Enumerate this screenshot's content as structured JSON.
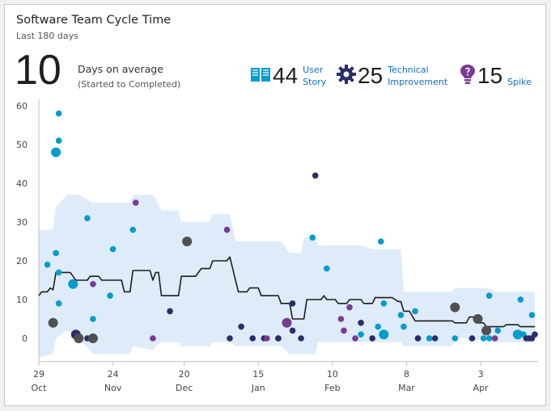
{
  "header": {
    "title": "Software Team Cycle Time",
    "subtitle": "Last 180 days",
    "average_value": "10",
    "average_label": "Days on average",
    "average_sub": "(Started to Completed)"
  },
  "work_items": [
    {
      "count": "44",
      "label_line1": "User",
      "label_line2": "Story",
      "icon": "book-icon",
      "color": "#009ccc"
    },
    {
      "count": "25",
      "label_line1": "Technical",
      "label_line2": "Improvement",
      "icon": "gear-icon",
      "color": "#292e6b"
    },
    {
      "count": "15",
      "label_line1": "Spike",
      "label_line2": "",
      "icon": "lightbulb-icon",
      "color": "#773b93"
    }
  ],
  "colors": {
    "user_story": "#009ccc",
    "technical": "#292e6b",
    "spike": "#773b93",
    "multiple": "#505050",
    "band": "#deebf8",
    "line": "#1e1e1e"
  },
  "chart_data": {
    "type": "scatter",
    "title": "Software Team Cycle Time",
    "ylabel": "",
    "xlabel": "",
    "ylim": [
      -6,
      60
    ],
    "xlim": [
      0,
      174
    ],
    "y_ticks": [
      0,
      10,
      20,
      30,
      40,
      50,
      60
    ],
    "x_ticks": [
      {
        "x": 0,
        "day": "29",
        "month": "Oct"
      },
      {
        "x": 26,
        "day": "24",
        "month": "Nov"
      },
      {
        "x": 51,
        "day": "20",
        "month": "Dec"
      },
      {
        "x": 77,
        "day": "15",
        "month": "Jan"
      },
      {
        "x": 103,
        "day": "10",
        "month": "Feb"
      },
      {
        "x": 129,
        "day": "8",
        "month": "Mar"
      },
      {
        "x": 155,
        "day": "3",
        "month": "Apr"
      }
    ],
    "points": [
      {
        "x": 3,
        "y": 19,
        "type": "user_story"
      },
      {
        "x": 5,
        "y": 4,
        "type": "multiple",
        "size": "large"
      },
      {
        "x": 6,
        "y": 48,
        "type": "user_story",
        "size": "large"
      },
      {
        "x": 6,
        "y": 22,
        "type": "user_story"
      },
      {
        "x": 7,
        "y": 58,
        "type": "user_story"
      },
      {
        "x": 7,
        "y": 51,
        "type": "user_story"
      },
      {
        "x": 7,
        "y": 17,
        "type": "user_story"
      },
      {
        "x": 7,
        "y": 9,
        "type": "user_story"
      },
      {
        "x": 12,
        "y": 14,
        "type": "user_story",
        "size": "large"
      },
      {
        "x": 13,
        "y": 1,
        "type": "technical",
        "size": "large"
      },
      {
        "x": 14,
        "y": 0,
        "type": "multiple",
        "size": "large"
      },
      {
        "x": 17,
        "y": 0,
        "type": "technical"
      },
      {
        "x": 17,
        "y": 31,
        "type": "user_story"
      },
      {
        "x": 19,
        "y": 14,
        "type": "spike"
      },
      {
        "x": 19,
        "y": 5,
        "type": "user_story"
      },
      {
        "x": 19,
        "y": 0,
        "type": "multiple",
        "size": "large"
      },
      {
        "x": 25,
        "y": 11,
        "type": "user_story"
      },
      {
        "x": 26,
        "y": 23,
        "type": "user_story"
      },
      {
        "x": 33,
        "y": 28,
        "type": "user_story"
      },
      {
        "x": 34,
        "y": 35,
        "type": "spike"
      },
      {
        "x": 40,
        "y": 0,
        "type": "spike"
      },
      {
        "x": 46,
        "y": 7,
        "type": "technical"
      },
      {
        "x": 52,
        "y": 25,
        "type": "multiple",
        "size": "large"
      },
      {
        "x": 66,
        "y": 28,
        "type": "spike"
      },
      {
        "x": 67,
        "y": 0,
        "type": "technical"
      },
      {
        "x": 71,
        "y": 3,
        "type": "technical"
      },
      {
        "x": 75,
        "y": 0,
        "type": "technical"
      },
      {
        "x": 79,
        "y": 0,
        "type": "technical"
      },
      {
        "x": 80,
        "y": 0,
        "type": "spike"
      },
      {
        "x": 84,
        "y": 0,
        "type": "technical"
      },
      {
        "x": 84,
        "y": 0,
        "type": "technical"
      },
      {
        "x": 87,
        "y": 4,
        "type": "spike",
        "size": "large"
      },
      {
        "x": 89,
        "y": 9,
        "type": "technical"
      },
      {
        "x": 89,
        "y": 2,
        "type": "technical"
      },
      {
        "x": 92,
        "y": 0,
        "type": "technical"
      },
      {
        "x": 96,
        "y": 26,
        "type": "user_story"
      },
      {
        "x": 97,
        "y": 42,
        "type": "technical"
      },
      {
        "x": 101,
        "y": 18,
        "type": "user_story"
      },
      {
        "x": 106,
        "y": 5,
        "type": "spike"
      },
      {
        "x": 107,
        "y": 2,
        "type": "spike"
      },
      {
        "x": 109,
        "y": 8,
        "type": "spike"
      },
      {
        "x": 111,
        "y": 0,
        "type": "spike"
      },
      {
        "x": 113,
        "y": 4,
        "type": "technical"
      },
      {
        "x": 113,
        "y": 1,
        "type": "user_story"
      },
      {
        "x": 117,
        "y": 0,
        "type": "technical"
      },
      {
        "x": 119,
        "y": 3,
        "type": "user_story"
      },
      {
        "x": 120,
        "y": 25,
        "type": "user_story"
      },
      {
        "x": 121,
        "y": 9,
        "type": "user_story"
      },
      {
        "x": 121,
        "y": 1,
        "type": "user_story",
        "size": "large"
      },
      {
        "x": 127,
        "y": 6,
        "type": "user_story"
      },
      {
        "x": 128,
        "y": 3,
        "type": "user_story"
      },
      {
        "x": 132,
        "y": 7,
        "type": "user_story"
      },
      {
        "x": 133,
        "y": 0,
        "type": "spike"
      },
      {
        "x": 133,
        "y": 0,
        "type": "technical"
      },
      {
        "x": 137,
        "y": 0,
        "type": "user_story"
      },
      {
        "x": 139,
        "y": 0,
        "type": "technical"
      },
      {
        "x": 146,
        "y": 8,
        "type": "multiple",
        "size": "large"
      },
      {
        "x": 146,
        "y": 0,
        "type": "user_story"
      },
      {
        "x": 152,
        "y": 0,
        "type": "technical"
      },
      {
        "x": 154,
        "y": 5,
        "type": "multiple",
        "size": "large"
      },
      {
        "x": 156,
        "y": 0,
        "type": "user_story"
      },
      {
        "x": 157,
        "y": 2,
        "type": "multiple",
        "size": "large"
      },
      {
        "x": 158,
        "y": 11,
        "type": "user_story"
      },
      {
        "x": 158,
        "y": 0,
        "type": "user_story"
      },
      {
        "x": 160,
        "y": 0,
        "type": "spike"
      },
      {
        "x": 161,
        "y": 2,
        "type": "user_story"
      },
      {
        "x": 168,
        "y": 1,
        "type": "user_story",
        "size": "large"
      },
      {
        "x": 169,
        "y": 10,
        "type": "user_story"
      },
      {
        "x": 170,
        "y": 1,
        "type": "user_story"
      },
      {
        "x": 171,
        "y": 0,
        "type": "technical"
      },
      {
        "x": 172,
        "y": 0,
        "type": "technical"
      },
      {
        "x": 173,
        "y": 6,
        "type": "user_story"
      },
      {
        "x": 173,
        "y": 0,
        "type": "technical"
      },
      {
        "x": 174,
        "y": 1,
        "type": "technical"
      }
    ],
    "moving_average": [
      [
        0,
        11
      ],
      [
        1,
        12
      ],
      [
        3,
        12
      ],
      [
        4,
        13
      ],
      [
        5,
        12.5
      ],
      [
        6,
        17
      ],
      [
        11,
        17
      ],
      [
        12,
        16
      ],
      [
        13,
        15
      ],
      [
        17,
        15
      ],
      [
        18,
        16
      ],
      [
        21,
        16
      ],
      [
        22,
        15
      ],
      [
        29,
        15
      ],
      [
        30,
        12
      ],
      [
        32,
        12
      ],
      [
        33,
        17.5
      ],
      [
        39,
        17.5
      ],
      [
        40,
        15
      ],
      [
        41,
        17
      ],
      [
        42,
        17
      ],
      [
        43,
        11
      ],
      [
        49,
        11
      ],
      [
        50,
        16
      ],
      [
        55,
        16
      ],
      [
        57,
        18
      ],
      [
        60,
        18
      ],
      [
        61,
        20
      ],
      [
        66,
        20
      ],
      [
        67,
        21
      ],
      [
        69,
        15
      ],
      [
        70,
        12
      ],
      [
        73,
        12
      ],
      [
        74,
        13
      ],
      [
        77,
        13
      ],
      [
        78,
        11
      ],
      [
        84,
        11
      ],
      [
        85,
        9
      ],
      [
        88,
        9
      ],
      [
        89,
        5
      ],
      [
        93,
        5
      ],
      [
        94,
        10
      ],
      [
        99,
        10
      ],
      [
        100,
        11
      ],
      [
        101,
        10
      ],
      [
        104,
        10
      ],
      [
        105,
        9
      ],
      [
        108,
        9
      ],
      [
        109,
        10
      ],
      [
        113,
        10
      ],
      [
        114,
        9
      ],
      [
        117,
        9
      ],
      [
        118,
        10.5
      ],
      [
        124,
        10.5
      ],
      [
        125,
        10
      ],
      [
        126,
        9.5
      ],
      [
        127,
        9.5
      ],
      [
        128,
        7
      ],
      [
        130,
        7
      ],
      [
        132,
        4.5
      ],
      [
        145,
        4.5
      ],
      [
        146,
        4
      ],
      [
        150,
        4
      ],
      [
        151,
        5.5
      ],
      [
        153,
        5.5
      ],
      [
        154,
        4
      ],
      [
        156,
        4
      ],
      [
        157,
        3
      ],
      [
        163,
        3
      ],
      [
        164,
        3.5
      ],
      [
        168,
        3.5
      ],
      [
        169,
        3
      ],
      [
        174,
        3
      ]
    ],
    "band": [
      [
        0,
        28,
        -5
      ],
      [
        5,
        28,
        -4
      ],
      [
        6,
        34,
        0
      ],
      [
        10,
        37,
        2
      ],
      [
        14,
        37,
        0
      ],
      [
        19,
        35,
        -4
      ],
      [
        32,
        35,
        -4
      ],
      [
        33,
        37,
        -2
      ],
      [
        40,
        37,
        -3
      ],
      [
        41,
        36,
        -2
      ],
      [
        43,
        33,
        -1
      ],
      [
        49,
        33,
        -1
      ],
      [
        50,
        30,
        -2
      ],
      [
        60,
        30,
        -2
      ],
      [
        61,
        32,
        -1
      ],
      [
        67,
        32,
        -1
      ],
      [
        69,
        25,
        -2
      ],
      [
        85,
        25,
        -2
      ],
      [
        88,
        22,
        -4
      ],
      [
        92,
        22,
        -4
      ],
      [
        93,
        26,
        -4
      ],
      [
        97,
        26,
        -4
      ],
      [
        98,
        24,
        -1
      ],
      [
        113,
        24,
        -1
      ],
      [
        117,
        23,
        -1
      ],
      [
        127,
        23,
        -1
      ],
      [
        128,
        12,
        -2
      ],
      [
        145,
        12,
        -2
      ],
      [
        146,
        13,
        0
      ],
      [
        150,
        13,
        0
      ],
      [
        151,
        13,
        -1
      ],
      [
        157,
        13,
        0
      ],
      [
        160,
        12,
        -1
      ],
      [
        174,
        12,
        -1
      ]
    ]
  }
}
